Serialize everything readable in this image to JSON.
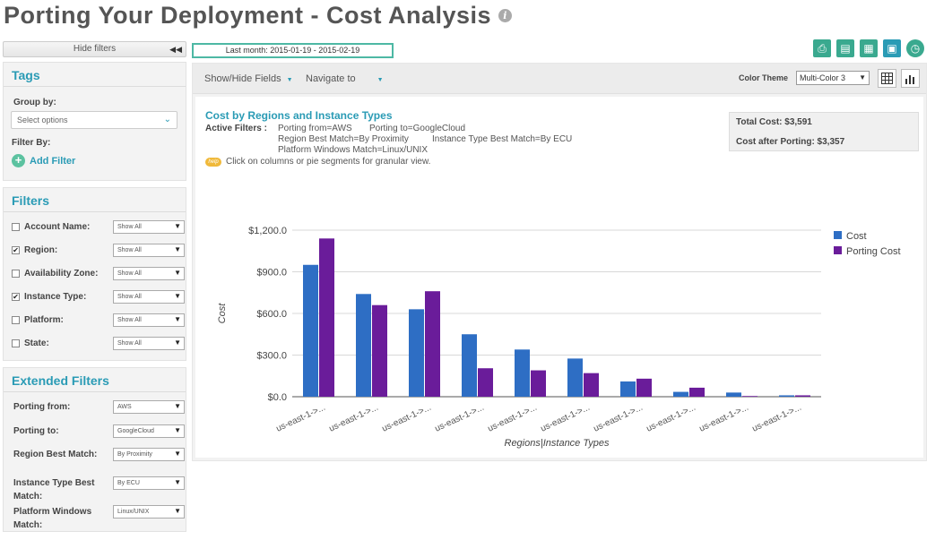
{
  "page": {
    "title": "Porting Your Deployment - Cost Analysis",
    "info_icon": "i"
  },
  "sidebar": {
    "hide_filters_label": "Hide filters",
    "hide_filters_arrows": "◀◀",
    "tags": {
      "title": "Tags",
      "group_by_label": "Group by:",
      "group_by_placeholder": "Select options",
      "filter_by_label": "Filter By:",
      "add_filter_label": "Add Filter"
    },
    "filters": {
      "title": "Filters",
      "items": [
        {
          "label": "Account Name:",
          "checked": false,
          "value": "Show All"
        },
        {
          "label": "Region:",
          "checked": true,
          "value": "Show All"
        },
        {
          "label": "Availability Zone:",
          "checked": false,
          "value": "Show All"
        },
        {
          "label": "Instance Type:",
          "checked": true,
          "value": "Show All"
        },
        {
          "label": "Platform:",
          "checked": false,
          "value": "Show All"
        },
        {
          "label": "State:",
          "checked": false,
          "value": "Show All"
        }
      ]
    },
    "extended_filters": {
      "title": "Extended Filters",
      "items": [
        {
          "label": "Porting from:",
          "value": "AWS"
        },
        {
          "label": "Porting to:",
          "value": "GoogleCloud"
        },
        {
          "label": "Region Best Match:",
          "value": "By Proximity"
        },
        {
          "label": "Instance Type Best Match:",
          "value": "By ECU"
        },
        {
          "label": "Platform Windows Match:",
          "value": "Linux/UNIX"
        }
      ]
    }
  },
  "topbar": {
    "date_range": "Last month:  2015-01-19 - 2015-02-19",
    "icons": [
      "pdf-icon",
      "report-icon",
      "csv-icon",
      "save-icon",
      "schedule-icon"
    ],
    "icon_colors": [
      "#3aa98f",
      "#3aa98f",
      "#3aa98f",
      "#2a9bb5",
      "#3aa98f"
    ]
  },
  "toolbar": {
    "show_hide_fields": "Show/Hide Fields",
    "navigate_to": "Navigate to",
    "color_theme_label": "Color Theme",
    "color_theme_value": "Multi-Color 3"
  },
  "report": {
    "title": "Cost by Regions and Instance Types",
    "active_filters_label": "Active Filters :",
    "active_filters": [
      "Porting from=AWS",
      "Porting to=GoogleCloud",
      "Region Best Match=By Proximity",
      "Instance Type Best Match=By ECU",
      "Platform Windows Match=Linux/UNIX"
    ],
    "help_badge": "help",
    "hint": "Click on columns or pie segments for granular view.",
    "total_cost": "Total Cost: $3,591",
    "cost_after_porting": "Cost after Porting: $3,357"
  },
  "chart_data": {
    "type": "bar",
    "categories": [
      "us-east-1->...",
      "us-east-1->...",
      "us-east-1->...",
      "us-east-1->...",
      "us-east-1->...",
      "us-east-1->...",
      "us-east-1->...",
      "us-east-1->...",
      "us-east-1->...",
      "us-east-1->..."
    ],
    "series": [
      {
        "name": "Cost",
        "color": "#2e6ec4",
        "values": [
          950,
          740,
          630,
          450,
          340,
          275,
          110,
          35,
          30,
          10
        ]
      },
      {
        "name": "Porting Cost",
        "color": "#6a1c9a",
        "values": [
          1140,
          660,
          760,
          205,
          190,
          170,
          130,
          65,
          5,
          10
        ]
      }
    ],
    "xlabel": "Regions|Instance Types",
    "ylabel": "Cost",
    "ylim": [
      0,
      1200
    ],
    "yticks": [
      0,
      300,
      600,
      900,
      1200
    ],
    "ytick_labels": [
      "$0.0",
      "$300.0",
      "$600.0",
      "$900.0",
      "$1,200.0"
    ],
    "legend_position": "top-right",
    "grid": true
  }
}
